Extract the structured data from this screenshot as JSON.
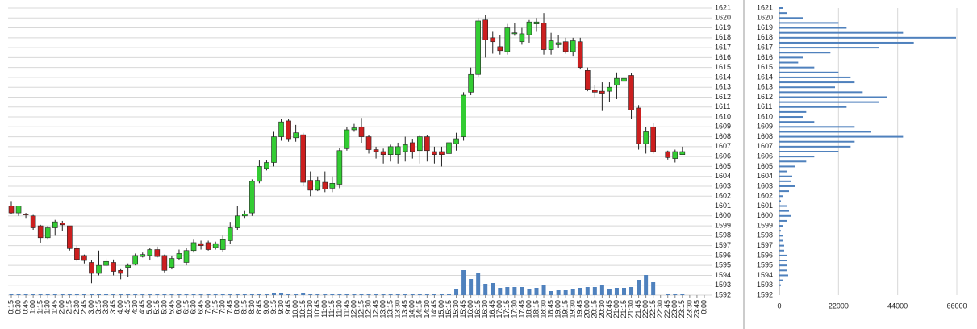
{
  "chart_data": [
    {
      "type": "candlestick",
      "x": [
        "0:15",
        "0:30",
        "0:45",
        "1:00",
        "1:15",
        "1:30",
        "1:45",
        "2:00",
        "2:15",
        "2:30",
        "2:45",
        "3:00",
        "3:15",
        "3:30",
        "3:45",
        "4:00",
        "4:15",
        "4:30",
        "4:45",
        "5:00",
        "5:15",
        "5:30",
        "5:45",
        "6:00",
        "6:15",
        "6:30",
        "6:45",
        "7:00",
        "7:15",
        "7:30",
        "7:45",
        "8:00",
        "8:15",
        "8:30",
        "8:45",
        "9:00",
        "9:15",
        "9:30",
        "9:45",
        "10:00",
        "10:15",
        "10:30",
        "10:45",
        "11:00",
        "11:15",
        "11:30",
        "11:45",
        "12:00",
        "12:15",
        "12:30",
        "12:45",
        "13:00",
        "13:15",
        "13:30",
        "13:45",
        "14:00",
        "14:15",
        "14:30",
        "14:45",
        "15:00",
        "15:15",
        "15:30",
        "15:45",
        "16:00",
        "16:15",
        "16:30",
        "16:45",
        "17:00",
        "17:15",
        "17:30",
        "17:45",
        "18:00",
        "18:15",
        "18:30",
        "18:45",
        "19:00",
        "19:15",
        "19:30",
        "19:45",
        "20:00",
        "20:15",
        "20:30",
        "20:45",
        "21:00",
        "21:15",
        "21:30",
        "21:45",
        "22:00",
        "22:15",
        "22:30",
        "22:45",
        "23:00",
        "23:15",
        "23:30",
        "23:45",
        "0:00"
      ],
      "open": [
        1601,
        1600.3,
        1600.2,
        1600,
        1599,
        1597.8,
        1598.8,
        1599.3,
        1599,
        1596.7,
        1596,
        1595.3,
        1594.2,
        1595,
        1595.3,
        1594.5,
        1594.8,
        1595.1,
        1595.9,
        1596,
        1596.6,
        1596,
        1594.8,
        1595.7,
        1595.3,
        1596.5,
        1597.2,
        1597.3,
        1596.8,
        1596.6,
        1597.5,
        1598.8,
        1600,
        1600.3,
        1603.5,
        1604.8,
        1605.4,
        1608,
        1609.6,
        1607.9,
        1608.2,
        1603.6,
        1602.6,
        1603.4,
        1602.8,
        1603.2,
        1606.8,
        1608.7,
        1609,
        1608,
        1606.7,
        1606.5,
        1606.2,
        1606.2,
        1606.5,
        1607.4,
        1606.6,
        1608,
        1606.5,
        1606.5,
        1606.3,
        1607.3,
        1608,
        1612.5,
        1614.3,
        1619.8,
        1618,
        1617.1,
        1616.6,
        1618.4,
        1617.6,
        1618.3,
        1619.4,
        1619.5,
        1616.8,
        1617.3,
        1617.6,
        1616.6,
        1617.6,
        1614.7,
        1612.7,
        1612.6,
        1612.6,
        1613.2,
        1613.6,
        1614.2,
        1610.9,
        1607.3,
        1609,
        null,
        1606.5,
        1605.8,
        1606.2,
        null,
        null,
        null
      ],
      "high": [
        1601.5,
        1601,
        1600.3,
        1600.1,
        1599.1,
        1599,
        1599.6,
        1599.5,
        1599,
        1597,
        1596.1,
        1595.5,
        1596.5,
        1595.7,
        1595.6,
        1594.7,
        1595.2,
        1596.2,
        1596.3,
        1596.8,
        1596.9,
        1596.1,
        1596,
        1596.6,
        1596.8,
        1597.6,
        1597.5,
        1597.5,
        1597.4,
        1598,
        1599.4,
        1601,
        1600.5,
        1603.7,
        1605.6,
        1605.6,
        1608.5,
        1609.8,
        1609.8,
        1609.2,
        1608.4,
        1604.5,
        1604,
        1604.5,
        1604,
        1606.9,
        1609,
        1609.3,
        1609.9,
        1608.2,
        1607,
        1606.8,
        1607.2,
        1607.4,
        1608,
        1607.8,
        1608.2,
        1608.2,
        1607,
        1607,
        1607.8,
        1608.4,
        1612.5,
        1615,
        1620,
        1620.3,
        1618.6,
        1618.3,
        1619.4,
        1619.5,
        1619,
        1619.8,
        1620,
        1620.5,
        1618.5,
        1618.3,
        1618,
        1618,
        1618,
        1615,
        1613.2,
        1613.5,
        1613.5,
        1614.5,
        1615.4,
        1614.4,
        1611.2,
        1609,
        1609.4,
        null,
        1606.6,
        1606.7,
        1607,
        null,
        null,
        null
      ],
      "low": [
        1600.2,
        1600,
        1599.8,
        1598.6,
        1597.3,
        1597.6,
        1598,
        1598.5,
        1596.5,
        1595.4,
        1595.2,
        1593.2,
        1594,
        1594.9,
        1594,
        1593.6,
        1593.8,
        1595,
        1595.8,
        1595.5,
        1595.8,
        1594.3,
        1594.6,
        1595.5,
        1595,
        1596.3,
        1596.6,
        1596.5,
        1596.6,
        1596.4,
        1597.2,
        1598.6,
        1599.8,
        1600,
        1603.3,
        1604.6,
        1605,
        1607.6,
        1607.5,
        1607.5,
        1603,
        1602,
        1602.5,
        1602.4,
        1602.4,
        1602.8,
        1606.6,
        1608.5,
        1607.4,
        1606.3,
        1605.8,
        1605.3,
        1605.5,
        1605.3,
        1605.5,
        1605.8,
        1605.3,
        1605.5,
        1605.3,
        1605,
        1605.6,
        1606.6,
        1607.6,
        1612.2,
        1614,
        1616,
        1616.4,
        1616.3,
        1616.3,
        1618.2,
        1617.3,
        1617.5,
        1618.6,
        1616.3,
        1616.3,
        1617,
        1616.4,
        1616.1,
        1614.8,
        1612.6,
        1612,
        1610.6,
        1611.5,
        1611.8,
        1610.8,
        1609.8,
        1606.7,
        1606.3,
        1606.3,
        null,
        1605.7,
        1605.4,
        1606.2,
        null,
        null,
        null
      ],
      "close": [
        1600.3,
        1601,
        1600.1,
        1598.8,
        1597.8,
        1598.8,
        1599.4,
        1599.1,
        1596.7,
        1595.6,
        1595.5,
        1594.2,
        1595,
        1595.4,
        1594.4,
        1594.2,
        1595,
        1596,
        1596.1,
        1596.6,
        1595.9,
        1594.5,
        1595.7,
        1596.2,
        1596.5,
        1597.3,
        1597,
        1596.6,
        1597.2,
        1597.6,
        1598.8,
        1600,
        1600.2,
        1603.5,
        1605,
        1605.4,
        1608,
        1609.5,
        1607.8,
        1608.4,
        1603.4,
        1602.6,
        1603.6,
        1602.7,
        1603.3,
        1606.6,
        1608.7,
        1608.9,
        1608,
        1606.7,
        1606.5,
        1606.2,
        1607,
        1607,
        1607.2,
        1606.5,
        1608,
        1606.6,
        1606.2,
        1606.2,
        1607.4,
        1607.8,
        1612.2,
        1614.3,
        1619.7,
        1617.8,
        1617.6,
        1616.7,
        1619,
        1618.5,
        1618.4,
        1619.6,
        1619.6,
        1616.8,
        1617.7,
        1617.5,
        1616.6,
        1617.7,
        1615,
        1612.8,
        1612.5,
        1612.4,
        1613,
        1613.9,
        1613.9,
        1610.7,
        1607.3,
        1608.5,
        1606.5,
        null,
        1605.9,
        1606.5,
        1606.5,
        null,
        null,
        null
      ],
      "volume": [
        2,
        1,
        1,
        1,
        1,
        1,
        1,
        1,
        1,
        1,
        1,
        1,
        1,
        1,
        1,
        1,
        1,
        1,
        1,
        1,
        1,
        1,
        1,
        1,
        1,
        1,
        1,
        1,
        1,
        1,
        1,
        1,
        1,
        2,
        1,
        2,
        3,
        3,
        2,
        2,
        3,
        2,
        1,
        1,
        1,
        1,
        1,
        1,
        2,
        1,
        1,
        1,
        1,
        1,
        1,
        1,
        1,
        1,
        1,
        2,
        2,
        8,
        31,
        20,
        27,
        14,
        15,
        9,
        10,
        10,
        10,
        8,
        9,
        12,
        5,
        6,
        6,
        7,
        9,
        10,
        10,
        12,
        8,
        9,
        9,
        10,
        19,
        25,
        16,
        null,
        2,
        2,
        1,
        null,
        null,
        null
      ],
      "ylim": [
        1592,
        1621
      ],
      "yticks": [
        1592,
        1593,
        1594,
        1595,
        1596,
        1597,
        1598,
        1599,
        1600,
        1601,
        1602,
        1603,
        1604,
        1605,
        1606,
        1607,
        1608,
        1609,
        1610,
        1611,
        1612,
        1613,
        1614,
        1615,
        1616,
        1617,
        1618,
        1619,
        1620,
        1621
      ],
      "grid": true,
      "up_color": "#33cc33",
      "down_color": "#cc1f1f",
      "volume_color": "#4f81bd"
    },
    {
      "type": "hbar",
      "y": [
        1621,
        1620.5,
        1620,
        1619.5,
        1619,
        1618.5,
        1618,
        1617.5,
        1617,
        1616.5,
        1616,
        1615.5,
        1615,
        1614.5,
        1614,
        1613.5,
        1613,
        1612.5,
        1612,
        1611.5,
        1611,
        1610.5,
        1610,
        1609.5,
        1609,
        1608.5,
        1608,
        1607.5,
        1607,
        1606.5,
        1606,
        1605.5,
        1605,
        1604.5,
        1604,
        1603.5,
        1603,
        1602.5,
        1602,
        1601.5,
        1601,
        1600.5,
        1600,
        1599.5,
        1599,
        1598.5,
        1598,
        1597.5,
        1597,
        1596.5,
        1596,
        1595.5,
        1595,
        1594.5,
        1594,
        1593.5,
        1593
      ],
      "values": [
        1200,
        2700,
        8700,
        22000,
        25000,
        46000,
        65700,
        50000,
        37000,
        19000,
        8700,
        7000,
        13000,
        22000,
        26500,
        28000,
        20700,
        31000,
        40000,
        37000,
        25000,
        10000,
        8700,
        13000,
        28000,
        34000,
        46000,
        28000,
        26500,
        22000,
        13000,
        10000,
        5700,
        2700,
        4800,
        4200,
        6000,
        3600,
        1200,
        600,
        2700,
        3600,
        4200,
        2700,
        1200,
        600,
        1200,
        1200,
        1800,
        1800,
        2700,
        3000,
        3000,
        2700,
        3300,
        1200,
        600
      ],
      "ylim": [
        1592,
        1621
      ],
      "yticks": [
        1592,
        1593,
        1594,
        1595,
        1596,
        1597,
        1598,
        1599,
        1600,
        1601,
        1602,
        1603,
        1604,
        1605,
        1606,
        1607,
        1608,
        1609,
        1610,
        1611,
        1612,
        1613,
        1614,
        1615,
        1616,
        1617,
        1618,
        1619,
        1620,
        1621
      ],
      "xlim": [
        0,
        66000
      ],
      "xticks": [
        0,
        22000,
        44000,
        66000
      ],
      "grid": true,
      "color": "#4f81bd"
    }
  ]
}
